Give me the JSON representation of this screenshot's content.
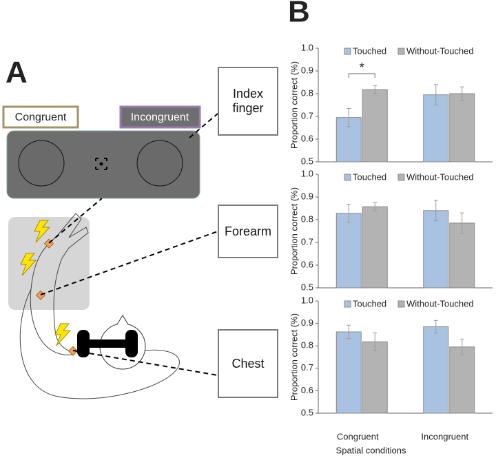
{
  "panel_a": {
    "label": "A",
    "congruent": "Congruent",
    "incongruent": "Incongruent",
    "sites": [
      "Index finger",
      "Forearm",
      "Chest"
    ]
  },
  "panel_b": {
    "label": "B"
  },
  "chart_data": [
    {
      "type": "bar",
      "ylabel": "Proportion correct (%)",
      "categories": [
        null,
        null
      ],
      "legend": "top",
      "series": [
        {
          "name": "Touched",
          "color": "#a9c2e2",
          "values": [
            0.695,
            0.795
          ],
          "errors": [
            0.04,
            0.045
          ]
        },
        {
          "name": "Without-Touched",
          "color": "#b3b3b3",
          "values": [
            0.818,
            0.8
          ],
          "errors": [
            0.018,
            0.03
          ]
        }
      ],
      "ylim": [
        0.5,
        1
      ],
      "yticks": [
        0.5,
        0.6,
        0.7,
        0.8,
        0.9,
        {
          "value": 1,
          "label": "1.0"
        }
      ],
      "annotation": "*"
    },
    {
      "type": "bar",
      "ylabel": "Proportion correct (%)",
      "categories": [
        null,
        null
      ],
      "legend": "top",
      "series": [
        {
          "name": "Touched",
          "color": "#a9c2e2",
          "values": [
            0.828,
            0.84
          ],
          "errors": [
            0.04,
            0.045
          ]
        },
        {
          "name": "Without-Touched",
          "color": "#b3b3b3",
          "values": [
            0.857,
            0.785
          ],
          "errors": [
            0.018,
            0.045
          ]
        }
      ],
      "ylim": [
        0.5,
        1
      ],
      "yticks": [
        0.5,
        0.6,
        0.7,
        0.8,
        0.9,
        {
          "value": 1,
          "label": "1.0"
        }
      ]
    },
    {
      "type": "bar",
      "ylabel": "Proportion correct (%)",
      "xlabel": "Spatial conditions",
      "categories": [
        "Congruent",
        "Incongruent"
      ],
      "legend": "top",
      "series": [
        {
          "name": "Touched",
          "color": "#a9c2e2",
          "values": [
            0.862,
            0.885
          ],
          "errors": [
            0.03,
            0.028
          ]
        },
        {
          "name": "Without-Touched",
          "color": "#b3b3b3",
          "values": [
            0.818,
            0.795
          ],
          "errors": [
            0.04,
            0.035
          ]
        }
      ],
      "ylim": [
        0.5,
        1
      ],
      "yticks": [
        0.5,
        0.6,
        0.7,
        0.8,
        0.9,
        {
          "value": 1,
          "label": "1.0"
        }
      ]
    }
  ]
}
